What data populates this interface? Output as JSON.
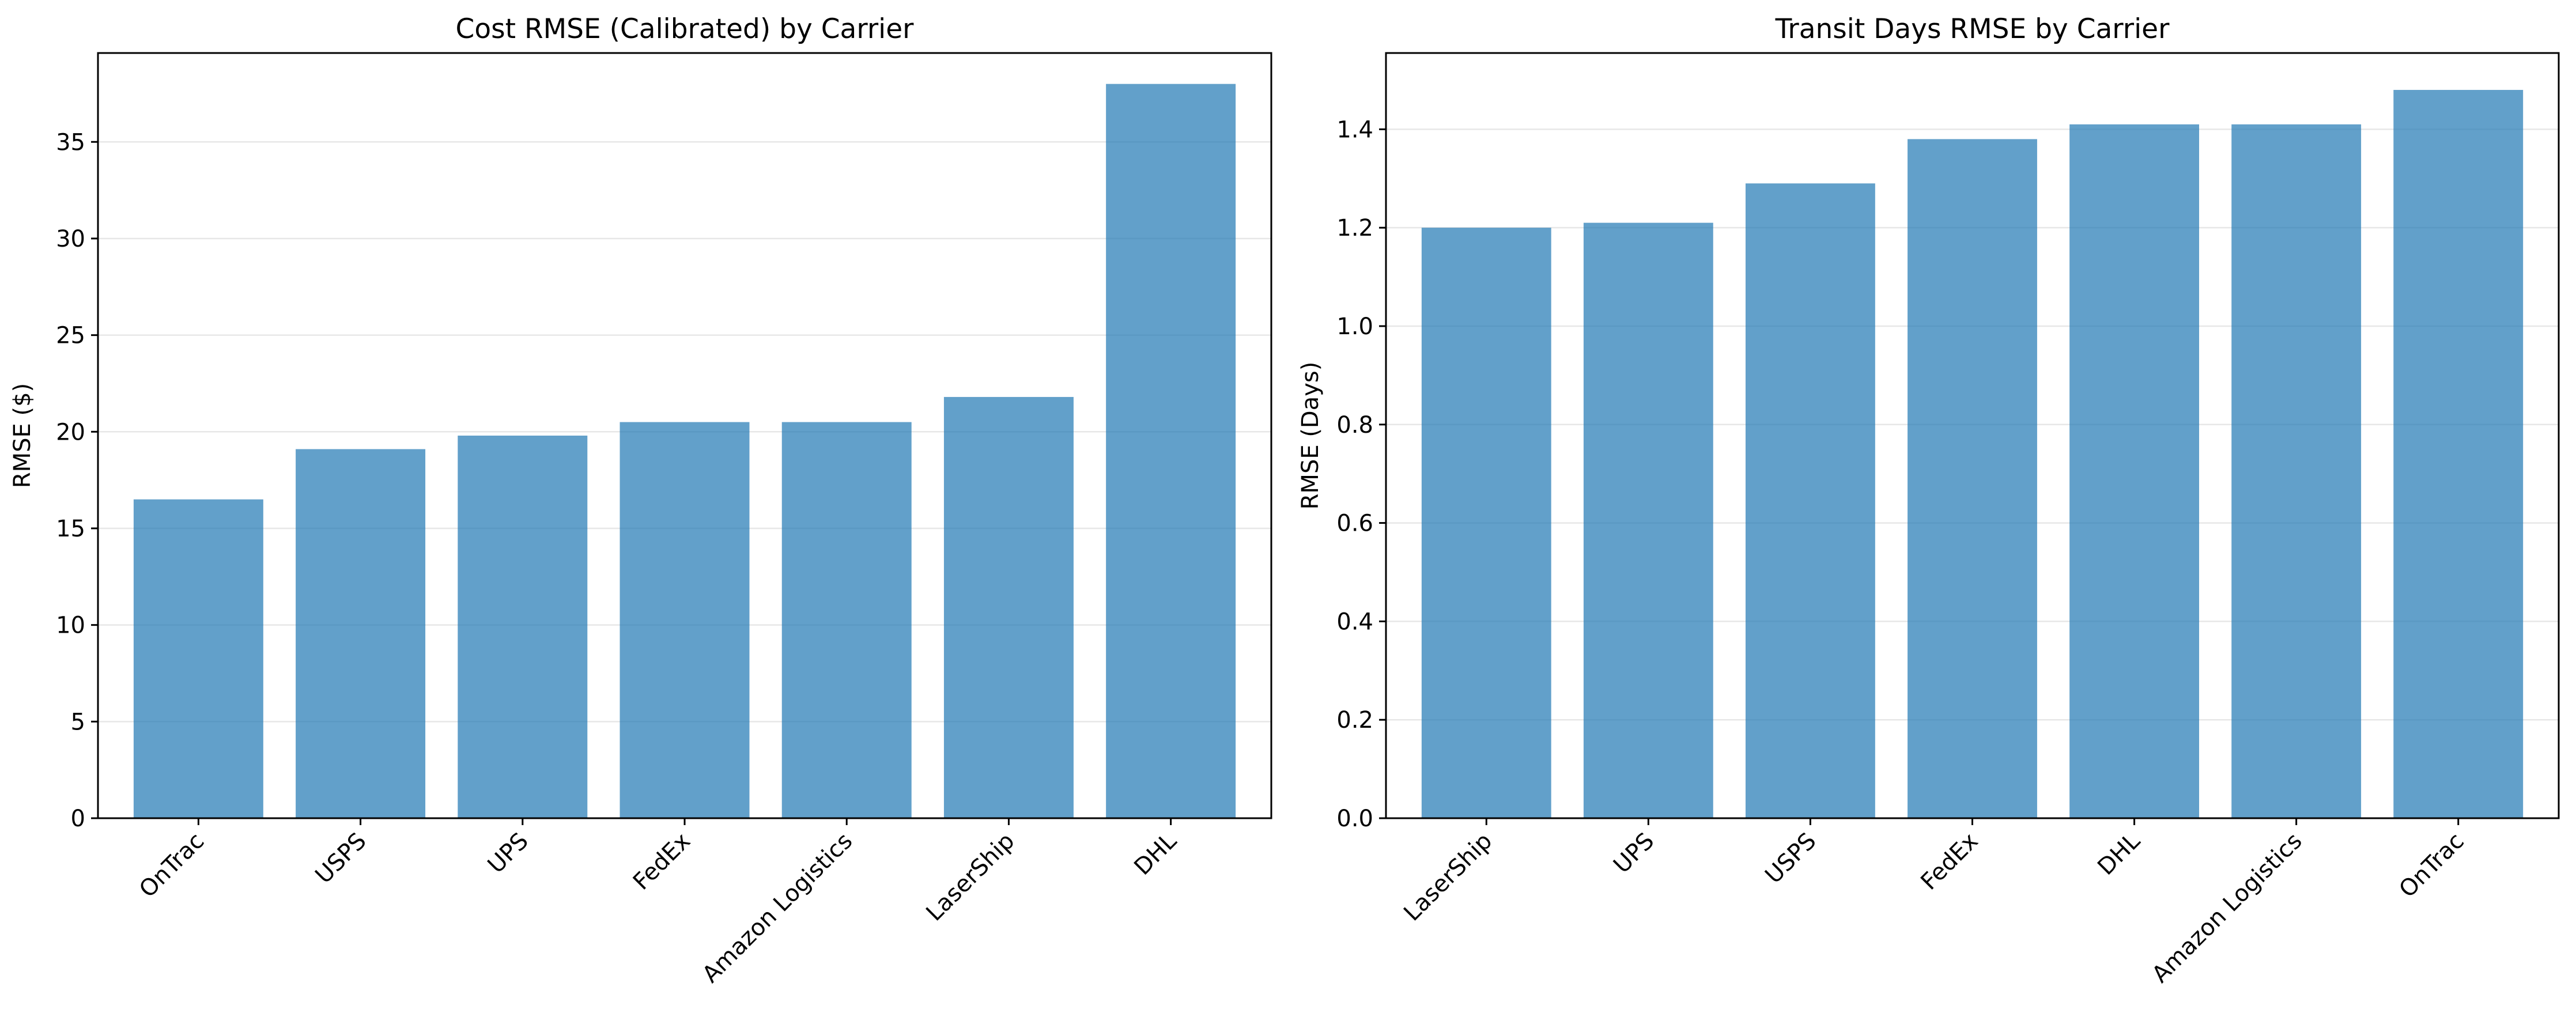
{
  "chart_data": [
    {
      "type": "bar",
      "title": "Cost RMSE (Calibrated) by Carrier",
      "xlabel": "",
      "ylabel": "RMSE ($)",
      "categories": [
        "OnTrac",
        "USPS",
        "UPS",
        "FedEx",
        "Amazon Logistics",
        "LaserShip",
        "DHL"
      ],
      "values": [
        16.5,
        19.1,
        19.8,
        20.5,
        20.5,
        21.8,
        38.0
      ],
      "ylim": [
        0,
        39.6
      ],
      "yticks": [
        0,
        5,
        10,
        15,
        20,
        25,
        30,
        35
      ],
      "ytick_labels": [
        "0",
        "5",
        "10",
        "15",
        "20",
        "25",
        "30",
        "35"
      ],
      "grid": "y",
      "bar_color": "#1f77b4"
    },
    {
      "type": "bar",
      "title": "Transit Days RMSE by Carrier",
      "xlabel": "",
      "ylabel": "RMSE (Days)",
      "categories": [
        "LaserShip",
        "UPS",
        "USPS",
        "FedEx",
        "DHL",
        "Amazon Logistics",
        "OnTrac"
      ],
      "values": [
        1.2,
        1.21,
        1.29,
        1.38,
        1.41,
        1.41,
        1.48
      ],
      "ylim": [
        0,
        1.555
      ],
      "yticks": [
        0,
        0.2,
        0.4,
        0.6,
        0.8,
        1.0,
        1.2,
        1.4
      ],
      "ytick_labels": [
        "0.0",
        "0.2",
        "0.4",
        "0.6",
        "0.8",
        "1.0",
        "1.2",
        "1.4"
      ],
      "grid": "y",
      "bar_color": "#1f77b4"
    }
  ]
}
